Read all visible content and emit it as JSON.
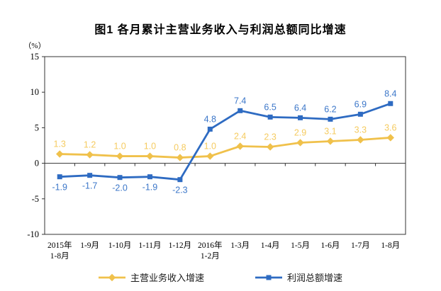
{
  "chart_data": {
    "type": "line",
    "title": "图1 各月累计主营业务收入与利润总额同比增速",
    "unit_label": "（%）",
    "categories": [
      "2015年\n1-8月",
      "1-9月",
      "1-10月",
      "1-11月",
      "1-12月",
      "2016年\n1-2月",
      "1-3月",
      "1-4月",
      "1-5月",
      "1-6月",
      "1-7月",
      "1-8月"
    ],
    "series": [
      {
        "name": "主营业务收入增速",
        "values": [
          1.3,
          1.2,
          1.0,
          1.0,
          0.8,
          1.0,
          2.4,
          2.3,
          2.9,
          3.1,
          3.3,
          3.6
        ],
        "color": "#F0C14B",
        "label_color": "#F5CB60",
        "marker": "diamond"
      },
      {
        "name": "利润总额增速",
        "values": [
          -1.9,
          -1.7,
          -2.0,
          -1.9,
          -2.3,
          4.8,
          7.4,
          6.5,
          6.4,
          6.2,
          6.9,
          8.4
        ],
        "color": "#2E6BC2",
        "label_color": "#3C77C9",
        "marker": "square"
      }
    ],
    "ylim": [
      -10,
      15
    ],
    "ytick_step": 5,
    "yticks": [
      -10,
      -5,
      0,
      5,
      10,
      15
    ],
    "grid": false,
    "axis_color": "#333333",
    "tick_label_color": "#000000",
    "legend_position": "bottom"
  }
}
